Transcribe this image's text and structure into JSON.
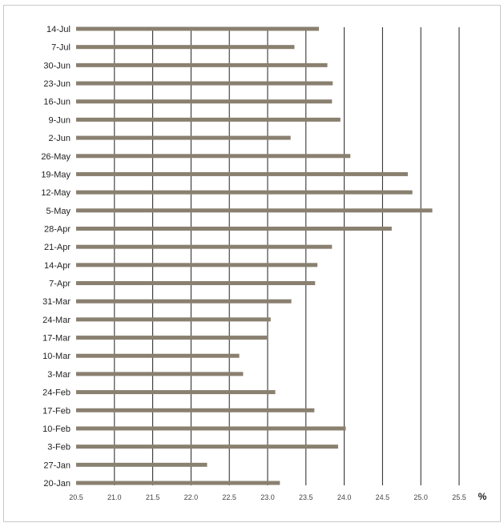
{
  "chart_data": {
    "type": "bar",
    "orientation": "horizontal",
    "categories": [
      "14-Jul",
      "7-Jul",
      "30-Jun",
      "23-Jun",
      "16-Jun",
      "9-Jun",
      "2-Jun",
      "26-May",
      "19-May",
      "12-May",
      "5-May",
      "28-Apr",
      "21-Apr",
      "14-Apr",
      "7-Apr",
      "31-Mar",
      "24-Mar",
      "17-Mar",
      "10-Mar",
      "3-Mar",
      "24-Feb",
      "17-Feb",
      "10-Feb",
      "3-Feb",
      "27-Jan",
      "20-Jan"
    ],
    "values": [
      23.67,
      23.35,
      23.78,
      23.85,
      23.84,
      23.95,
      23.3,
      24.08,
      24.83,
      24.89,
      25.15,
      24.62,
      23.84,
      23.65,
      23.62,
      23.31,
      23.04,
      22.99,
      22.63,
      22.68,
      23.1,
      23.61,
      24.02,
      23.92,
      22.21,
      23.16
    ],
    "xlabel": "%",
    "xlim": [
      20.5,
      25.5
    ],
    "xticks": [
      "20.5",
      "21.0",
      "21.5",
      "22.0",
      "22.5",
      "23.0",
      "23.5",
      "24.0",
      "24.5",
      "25.0",
      "25.5"
    ],
    "grid": "vertical",
    "bar_color": "#8a8070",
    "grid_color": "#222222"
  }
}
